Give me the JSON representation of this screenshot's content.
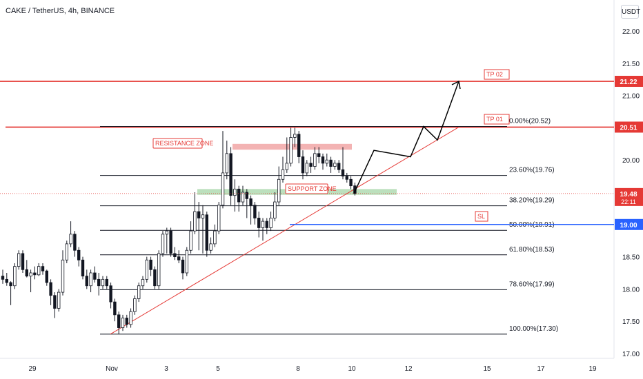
{
  "header": {
    "symbol_title": "CAKE / TetherUS, 4h, BINANCE",
    "currency_button": "USDT"
  },
  "chart_data": {
    "type": "candlestick",
    "y_axis_ticks": [
      22.0,
      21.5,
      21.0,
      20.5,
      20.0,
      19.5,
      19.0,
      18.5,
      18.0,
      17.5,
      17.0
    ],
    "x_axis_ticks": [
      "29",
      "Nov",
      "3",
      "5",
      "8",
      "10",
      "12",
      "15",
      "17",
      "19"
    ],
    "fib_levels": [
      {
        "label": "0.00%(20.52)",
        "price": 20.52
      },
      {
        "label": "23.60%(19.76)",
        "price": 19.76
      },
      {
        "label": "38.20%(19.29)",
        "price": 19.29
      },
      {
        "label": "50.00%(18.91)",
        "price": 18.91
      },
      {
        "label": "61.80%(18.53)",
        "price": 18.53
      },
      {
        "label": "78.60%(17.99)",
        "price": 17.99
      },
      {
        "label": "100.00%(17.30)",
        "price": 17.3
      }
    ],
    "horizontal_lines": [
      {
        "name": "TP 02",
        "price": 21.22,
        "color": "#e53935"
      },
      {
        "name": "TP 01",
        "price": 20.51,
        "color": "#e53935"
      },
      {
        "name": "SL",
        "price": 19.0,
        "color": "#2962ff"
      }
    ],
    "price_badges": [
      {
        "text": "21.22",
        "price": 21.22,
        "color": "#e53935"
      },
      {
        "text": "20.51",
        "price": 20.51,
        "color": "#e53935"
      },
      {
        "text": "19.48",
        "sub": "22:11",
        "price": 19.48,
        "color": "#e53935"
      },
      {
        "text": "19.00",
        "price": 19.0,
        "color": "#2962ff"
      }
    ],
    "zones": [
      {
        "label": "RESISTANCE ZONE",
        "top": 20.25,
        "bottom": 20.16,
        "color": "#ef9a9a"
      },
      {
        "label": "SUPPORT ZONE",
        "top": 19.55,
        "bottom": 19.46,
        "color": "#a5d6a7"
      }
    ],
    "projection_path": [
      19.48,
      20.15,
      20.05,
      20.52,
      20.31,
      21.22
    ],
    "trendline": {
      "from": 17.3,
      "to": 20.51,
      "color": "#e53935"
    },
    "current_price": 19.48,
    "candles": [
      [
        18.2,
        18.15,
        18.3,
        18.08
      ],
      [
        18.15,
        18.1,
        18.25,
        18.05
      ],
      [
        18.1,
        18.05,
        18.12,
        17.75
      ],
      [
        18.05,
        18.35,
        18.4,
        18.0
      ],
      [
        18.35,
        18.55,
        18.6,
        18.3
      ],
      [
        18.55,
        18.3,
        18.6,
        18.25
      ],
      [
        18.3,
        18.2,
        18.45,
        18.18
      ],
      [
        18.2,
        18.25,
        18.3,
        17.95
      ],
      [
        18.25,
        18.22,
        18.35,
        18.15
      ],
      [
        18.22,
        18.35,
        18.4,
        18.2
      ],
      [
        18.35,
        18.28,
        18.4,
        18.22
      ],
      [
        18.28,
        18.1,
        18.3,
        18.05
      ],
      [
        18.1,
        17.9,
        18.15,
        17.75
      ],
      [
        17.9,
        17.7,
        17.95,
        17.55
      ],
      [
        17.7,
        17.95,
        18.0,
        17.65
      ],
      [
        17.95,
        18.45,
        18.6,
        17.9
      ],
      [
        18.45,
        18.7,
        18.75,
        18.4
      ],
      [
        18.7,
        18.85,
        19.05,
        18.65
      ],
      [
        18.85,
        18.6,
        18.9,
        18.5
      ],
      [
        18.6,
        18.45,
        18.65,
        18.35
      ],
      [
        18.45,
        18.2,
        18.5,
        18.15
      ],
      [
        18.2,
        18.05,
        18.3,
        18.0
      ],
      [
        18.05,
        18.25,
        18.3,
        17.95
      ],
      [
        18.25,
        18.15,
        18.35,
        18.1
      ],
      [
        18.15,
        18.05,
        18.25,
        17.9
      ],
      [
        18.05,
        18.15,
        18.2,
        18.0
      ],
      [
        18.15,
        18.05,
        18.2,
        18.0
      ],
      [
        18.05,
        17.8,
        18.1,
        17.7
      ],
      [
        17.8,
        17.6,
        17.85,
        17.5
      ],
      [
        17.6,
        17.4,
        17.65,
        17.3
      ],
      [
        17.4,
        17.55,
        17.6,
        17.35
      ],
      [
        17.55,
        17.45,
        17.6,
        17.4
      ],
      [
        17.45,
        17.65,
        17.7,
        17.4
      ],
      [
        17.65,
        17.85,
        17.9,
        17.6
      ],
      [
        17.85,
        18.05,
        18.1,
        17.8
      ],
      [
        18.05,
        18.15,
        18.2,
        18.0
      ],
      [
        18.15,
        18.45,
        18.5,
        18.1
      ],
      [
        18.45,
        18.3,
        18.5,
        18.2
      ],
      [
        18.3,
        18.05,
        18.35,
        18.0
      ],
      [
        18.05,
        18.55,
        18.6,
        18.0
      ],
      [
        18.55,
        18.85,
        18.9,
        18.5
      ],
      [
        18.85,
        18.9,
        18.95,
        18.55
      ],
      [
        18.9,
        18.55,
        18.95,
        18.5
      ],
      [
        18.55,
        18.5,
        18.65,
        18.45
      ],
      [
        18.5,
        18.45,
        18.6,
        18.4
      ],
      [
        18.45,
        18.25,
        18.5,
        18.15
      ],
      [
        18.25,
        18.6,
        18.65,
        18.2
      ],
      [
        18.6,
        18.9,
        19.05,
        18.55
      ],
      [
        18.9,
        19.2,
        19.5,
        18.85
      ],
      [
        19.2,
        19.1,
        19.35,
        18.6
      ],
      [
        19.1,
        19.15,
        19.3,
        18.55
      ],
      [
        19.15,
        18.6,
        19.2,
        18.5
      ],
      [
        18.6,
        18.7,
        18.8,
        18.55
      ],
      [
        18.7,
        18.9,
        19.0,
        18.65
      ],
      [
        18.9,
        19.3,
        19.35,
        18.85
      ],
      [
        19.3,
        19.8,
        20.45,
        19.25
      ],
      [
        19.8,
        20.1,
        20.3,
        19.7
      ],
      [
        20.1,
        19.45,
        20.2,
        19.3
      ],
      [
        19.45,
        19.55,
        19.7,
        19.2
      ],
      [
        19.55,
        19.35,
        19.6,
        19.2
      ],
      [
        19.35,
        19.5,
        19.6,
        19.3
      ],
      [
        19.5,
        19.4,
        19.55,
        19.1
      ],
      [
        19.4,
        19.3,
        19.45,
        19.0
      ],
      [
        19.3,
        19.1,
        19.35,
        19.0
      ],
      [
        19.1,
        18.95,
        19.2,
        18.8
      ],
      [
        18.95,
        19.05,
        19.1,
        18.75
      ],
      [
        19.05,
        18.95,
        19.1,
        18.85
      ],
      [
        18.95,
        19.1,
        19.2,
        18.9
      ],
      [
        19.1,
        19.35,
        19.5,
        19.05
      ],
      [
        19.35,
        19.7,
        19.9,
        19.3
      ],
      [
        19.7,
        19.85,
        20.05,
        19.65
      ],
      [
        19.85,
        19.95,
        20.35,
        19.8
      ],
      [
        19.95,
        20.35,
        20.5,
        19.9
      ],
      [
        20.35,
        20.4,
        20.5,
        20.2
      ],
      [
        20.4,
        20.05,
        20.45,
        19.95
      ],
      [
        20.05,
        19.8,
        20.15,
        19.7
      ],
      [
        19.8,
        19.95,
        20.0,
        19.75
      ],
      [
        19.95,
        19.9,
        20.05,
        19.8
      ],
      [
        19.9,
        20.1,
        20.2,
        19.85
      ],
      [
        20.1,
        20.05,
        20.2,
        19.95
      ],
      [
        20.05,
        19.95,
        20.1,
        19.85
      ],
      [
        19.95,
        20.0,
        20.1,
        19.9
      ],
      [
        20.0,
        19.9,
        20.05,
        19.8
      ],
      [
        19.9,
        19.95,
        20.0,
        19.85
      ],
      [
        19.95,
        19.85,
        20.0,
        19.8
      ],
      [
        19.85,
        19.75,
        20.2,
        19.7
      ],
      [
        19.75,
        19.7,
        19.8,
        19.65
      ],
      [
        19.7,
        19.6,
        19.75,
        19.55
      ],
      [
        19.6,
        19.48,
        19.65,
        19.45
      ]
    ]
  }
}
